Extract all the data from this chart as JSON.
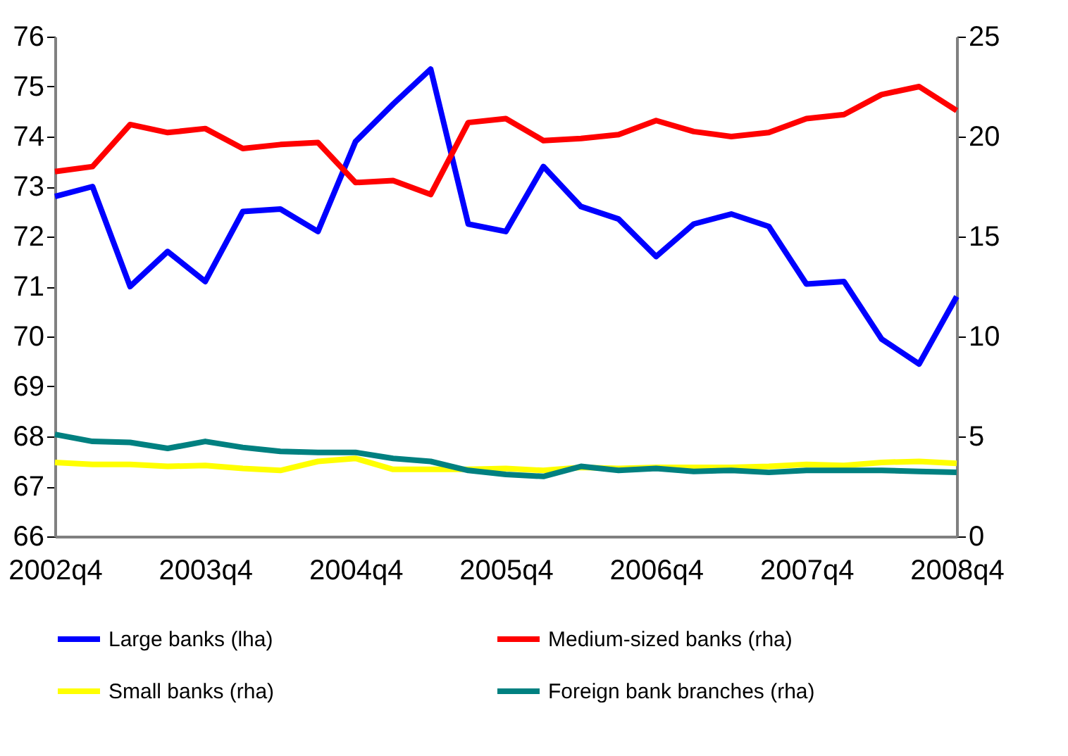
{
  "chart_data": {
    "type": "line",
    "categories": [
      "2002q4",
      null,
      null,
      null,
      "2003q4",
      null,
      null,
      null,
      "2004q4",
      null,
      null,
      null,
      "2005q4",
      null,
      null,
      null,
      "2006q4",
      null,
      null,
      null,
      "2007q4",
      null,
      null,
      null,
      "2008q4"
    ],
    "series": [
      {
        "name": "Large banks (lha)",
        "color": "#0000ff",
        "values": [
          72.8,
          73.0,
          71.0,
          71.7,
          71.1,
          72.5,
          72.55,
          72.1,
          73.9,
          74.65,
          75.35,
          72.25,
          72.1,
          73.4,
          72.6,
          72.35,
          71.6,
          72.25,
          72.45,
          72.2,
          71.05,
          71.1,
          69.95,
          69.45,
          70.8
        ]
      },
      {
        "name": "Medium-sized banks (rha)",
        "color": "#ff0000",
        "axis": "y2",
        "values": [
          18.25,
          18.5,
          20.6,
          20.2,
          20.4,
          19.4,
          19.6,
          19.7,
          17.7,
          17.8,
          17.1,
          20.7,
          20.9,
          19.8,
          19.9,
          20.1,
          20.8,
          20.25,
          20.0,
          20.2,
          20.9,
          21.1,
          22.1,
          22.5,
          21.3
        ]
      },
      {
        "name": "Small banks (rha)",
        "color": "#ffff00",
        "axis": "y2",
        "values": [
          3.7,
          3.6,
          3.6,
          3.5,
          3.55,
          3.4,
          3.3,
          3.75,
          3.9,
          3.35,
          3.35,
          3.35,
          3.4,
          3.3,
          3.45,
          3.4,
          3.45,
          3.45,
          3.45,
          3.5,
          3.6,
          3.55,
          3.7,
          3.75,
          3.65
        ]
      },
      {
        "name": "Foreign bank branches (rha)",
        "color": "#008080",
        "axis": "y2",
        "values": [
          5.1,
          4.75,
          4.7,
          4.4,
          4.75,
          4.45,
          4.25,
          4.2,
          4.2,
          3.9,
          3.75,
          3.3,
          3.1,
          3.0,
          3.5,
          3.3,
          3.4,
          3.25,
          3.3,
          3.2,
          3.3,
          3.3,
          3.3,
          3.25,
          3.2
        ]
      }
    ],
    "ylim": [
      66,
      76
    ],
    "yticks": [
      66,
      67,
      68,
      69,
      70,
      71,
      72,
      73,
      74,
      75,
      76
    ],
    "y2lim": [
      0,
      25
    ],
    "y2ticks": [
      0,
      5,
      10,
      15,
      20,
      25
    ],
    "grid": false,
    "legend": "bottom",
    "line_style": "solid",
    "marker": "none"
  }
}
